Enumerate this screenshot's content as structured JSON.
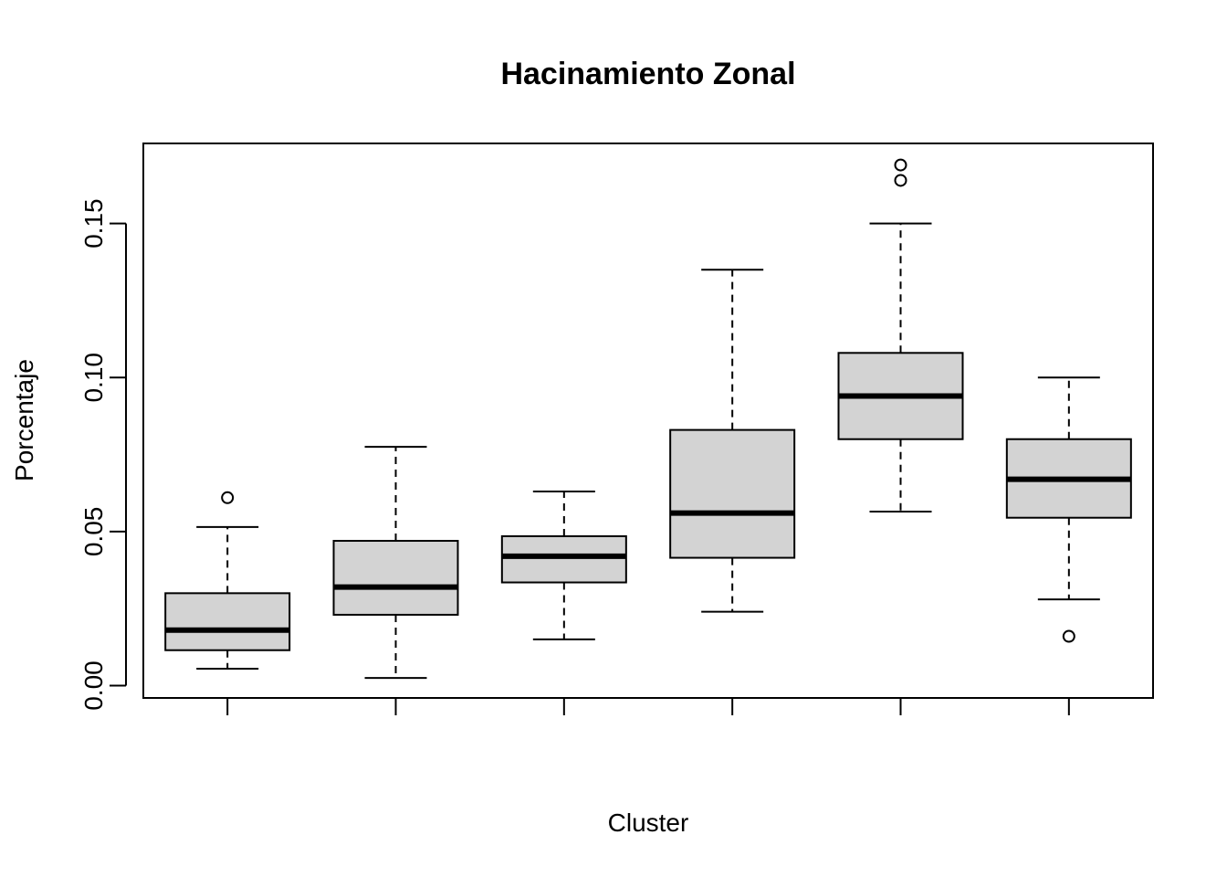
{
  "chart_data": {
    "type": "boxplot",
    "title": "Hacinamiento Zonal",
    "xlabel": "Cluster",
    "ylabel": "Porcentaje",
    "ylim": [
      -0.004,
      0.176
    ],
    "y_ticks": [
      "0.00",
      "0.05",
      "0.10",
      "0.15"
    ],
    "y_tick_values": [
      0.0,
      0.05,
      0.1,
      0.15
    ],
    "categories": [
      "",
      "",
      "",
      "",
      "",
      ""
    ],
    "grid": false,
    "box_fill": "#d3d3d3",
    "line_color": "#000000",
    "boxes": [
      {
        "whisker_low": 0.0055,
        "q1": 0.0115,
        "median": 0.018,
        "q3": 0.03,
        "whisker_high": 0.0515,
        "outliers": [
          0.061
        ]
      },
      {
        "whisker_low": 0.0025,
        "q1": 0.023,
        "median": 0.032,
        "q3": 0.047,
        "whisker_high": 0.0775,
        "outliers": []
      },
      {
        "whisker_low": 0.015,
        "q1": 0.0335,
        "median": 0.042,
        "q3": 0.0485,
        "whisker_high": 0.063,
        "outliers": []
      },
      {
        "whisker_low": 0.024,
        "q1": 0.0415,
        "median": 0.056,
        "q3": 0.083,
        "whisker_high": 0.135,
        "outliers": []
      },
      {
        "whisker_low": 0.0565,
        "q1": 0.08,
        "median": 0.094,
        "q3": 0.108,
        "whisker_high": 0.15,
        "outliers": [
          0.164,
          0.169
        ]
      },
      {
        "whisker_low": 0.028,
        "q1": 0.0545,
        "median": 0.067,
        "q3": 0.08,
        "whisker_high": 0.1,
        "outliers": [
          0.016
        ]
      }
    ]
  }
}
